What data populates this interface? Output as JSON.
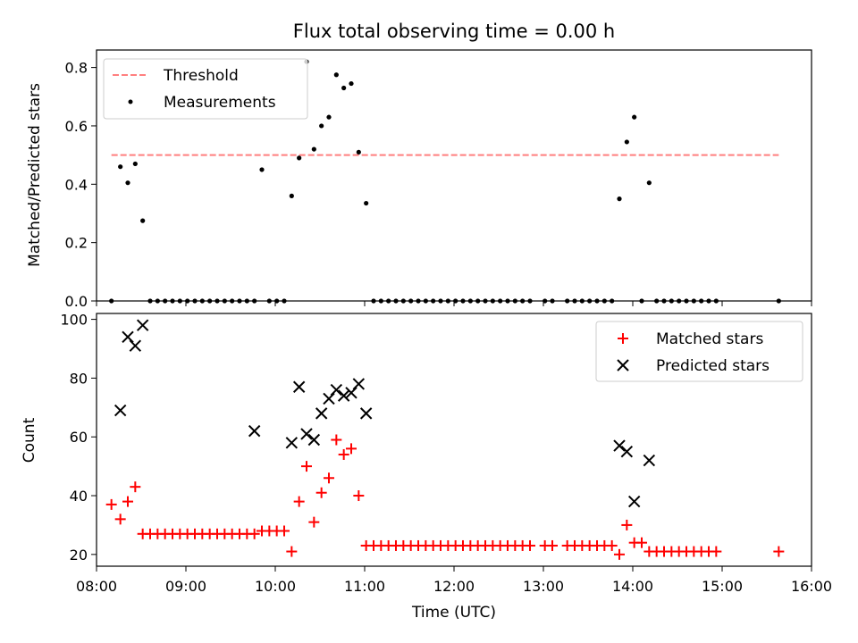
{
  "chart_data": [
    {
      "type": "scatter",
      "title": "Flux total observing time = 0.00 h",
      "xlabel": "",
      "ylabel": "Matched/Predicted stars",
      "xlim": [
        "08:00",
        "16:00"
      ],
      "ylim": [
        0,
        0.86
      ],
      "yticks": [
        0.0,
        0.2,
        0.4,
        0.6,
        0.8
      ],
      "ytick_labels": [
        "0.0",
        "0.2",
        "0.4",
        "0.6",
        "0.8"
      ],
      "xtick_labels": [],
      "legend_placement": "top-left",
      "series": [
        {
          "name": "Threshold",
          "kind": "line",
          "style": "dashed",
          "color": "#ff7f7f",
          "x": [
            "08:10",
            "15:38"
          ],
          "y": [
            0.5,
            0.5
          ]
        },
        {
          "name": "Measurements",
          "kind": "scatter",
          "marker": "dot",
          "color": "#000000",
          "x": [
            "08:10",
            "08:16",
            "08:21",
            "08:26",
            "08:31",
            "08:36",
            "08:41",
            "08:46",
            "08:51",
            "08:56",
            "09:01",
            "09:06",
            "09:11",
            "09:16",
            "09:21",
            "09:26",
            "09:31",
            "09:36",
            "09:41",
            "09:46",
            "09:51",
            "09:56",
            "10:01",
            "10:06",
            "10:11",
            "10:16",
            "10:21",
            "10:26",
            "10:31",
            "10:36",
            "10:41",
            "10:46",
            "10:51",
            "10:56",
            "11:01",
            "11:06",
            "11:11",
            "11:16",
            "11:21",
            "11:26",
            "11:31",
            "11:36",
            "11:41",
            "11:46",
            "11:51",
            "11:56",
            "12:01",
            "12:06",
            "12:11",
            "12:16",
            "12:21",
            "12:26",
            "12:31",
            "12:36",
            "12:41",
            "12:46",
            "12:51",
            "13:01",
            "13:06",
            "13:16",
            "13:21",
            "13:26",
            "13:31",
            "13:36",
            "13:41",
            "13:46",
            "13:51",
            "13:56",
            "14:01",
            "14:06",
            "14:11",
            "14:16",
            "14:21",
            "14:26",
            "14:31",
            "14:36",
            "14:41",
            "14:46",
            "14:51",
            "14:56",
            "15:38"
          ],
          "y": [
            0.0,
            0.46,
            0.405,
            0.47,
            0.275,
            0.0,
            0.0,
            0.0,
            0.0,
            0.0,
            0.0,
            0.0,
            0.0,
            0.0,
            0.0,
            0.0,
            0.0,
            0.0,
            0.0,
            0.0,
            0.45,
            0.0,
            0.0,
            0.0,
            0.36,
            0.49,
            0.82,
            0.52,
            0.6,
            0.63,
            0.775,
            0.73,
            0.745,
            0.51,
            0.335,
            0.0,
            0.0,
            0.0,
            0.0,
            0.0,
            0.0,
            0.0,
            0.0,
            0.0,
            0.0,
            0.0,
            0.0,
            0.0,
            0.0,
            0.0,
            0.0,
            0.0,
            0.0,
            0.0,
            0.0,
            0.0,
            0.0,
            0.0,
            0.0,
            0.0,
            0.0,
            0.0,
            0.0,
            0.0,
            0.0,
            0.0,
            0.35,
            0.545,
            0.63,
            0.0,
            0.405,
            0.0,
            0.0,
            0.0,
            0.0,
            0.0,
            0.0,
            0.0,
            0.0,
            0.0,
            0.0
          ]
        }
      ]
    },
    {
      "type": "scatter",
      "title": "",
      "xlabel": "Time (UTC)",
      "ylabel": "Count",
      "xlim": [
        "08:00",
        "16:00"
      ],
      "ylim": [
        16,
        102
      ],
      "yticks": [
        20,
        40,
        60,
        80,
        100
      ],
      "ytick_labels": [
        "20",
        "40",
        "60",
        "80",
        "100"
      ],
      "xticks": [
        "08:00",
        "09:00",
        "10:00",
        "11:00",
        "12:00",
        "13:00",
        "14:00",
        "15:00",
        "16:00"
      ],
      "xtick_labels": [
        "08:00",
        "09:00",
        "10:00",
        "11:00",
        "12:00",
        "13:00",
        "14:00",
        "15:00",
        "16:00"
      ],
      "legend_placement": "top-right",
      "series": [
        {
          "name": "Matched stars",
          "kind": "scatter",
          "marker": "plus",
          "color": "#ff0000",
          "x": [
            "08:10",
            "08:16",
            "08:21",
            "08:26",
            "08:31",
            "08:36",
            "08:41",
            "08:46",
            "08:51",
            "08:56",
            "09:01",
            "09:06",
            "09:11",
            "09:16",
            "09:21",
            "09:26",
            "09:31",
            "09:36",
            "09:41",
            "09:46",
            "09:51",
            "09:56",
            "10:01",
            "10:06",
            "10:11",
            "10:16",
            "10:21",
            "10:26",
            "10:31",
            "10:36",
            "10:41",
            "10:46",
            "10:51",
            "10:56",
            "11:01",
            "11:06",
            "11:11",
            "11:16",
            "11:21",
            "11:26",
            "11:31",
            "11:36",
            "11:41",
            "11:46",
            "11:51",
            "11:56",
            "12:01",
            "12:06",
            "12:11",
            "12:16",
            "12:21",
            "12:26",
            "12:31",
            "12:36",
            "12:41",
            "12:46",
            "12:51",
            "13:01",
            "13:06",
            "13:16",
            "13:21",
            "13:26",
            "13:31",
            "13:36",
            "13:41",
            "13:46",
            "13:51",
            "13:56",
            "14:01",
            "14:06",
            "14:11",
            "14:16",
            "14:21",
            "14:26",
            "14:31",
            "14:36",
            "14:41",
            "14:46",
            "14:51",
            "14:56",
            "15:38"
          ],
          "y": [
            37,
            32,
            38,
            43,
            27,
            27,
            27,
            27,
            27,
            27,
            27,
            27,
            27,
            27,
            27,
            27,
            27,
            27,
            27,
            27,
            28,
            28,
            28,
            28,
            21,
            38,
            50,
            31,
            41,
            46,
            59,
            54,
            56,
            40,
            23,
            23,
            23,
            23,
            23,
            23,
            23,
            23,
            23,
            23,
            23,
            23,
            23,
            23,
            23,
            23,
            23,
            23,
            23,
            23,
            23,
            23,
            23,
            23,
            23,
            23,
            23,
            23,
            23,
            23,
            23,
            23,
            20,
            30,
            24,
            24,
            21,
            21,
            21,
            21,
            21,
            21,
            21,
            21,
            21,
            21,
            21
          ]
        },
        {
          "name": "Predicted stars",
          "kind": "scatter",
          "marker": "x",
          "color": "#000000",
          "x": [
            "08:16",
            "08:21",
            "08:26",
            "08:31",
            "09:46",
            "10:11",
            "10:16",
            "10:21",
            "10:26",
            "10:31",
            "10:36",
            "10:41",
            "10:46",
            "10:51",
            "10:56",
            "11:01",
            "13:51",
            "13:56",
            "14:01",
            "14:11"
          ],
          "y": [
            69,
            94,
            91,
            98,
            62,
            58,
            77,
            61,
            59,
            68,
            73,
            76,
            74,
            75,
            78,
            68,
            57,
            55,
            38,
            52
          ]
        }
      ]
    }
  ]
}
